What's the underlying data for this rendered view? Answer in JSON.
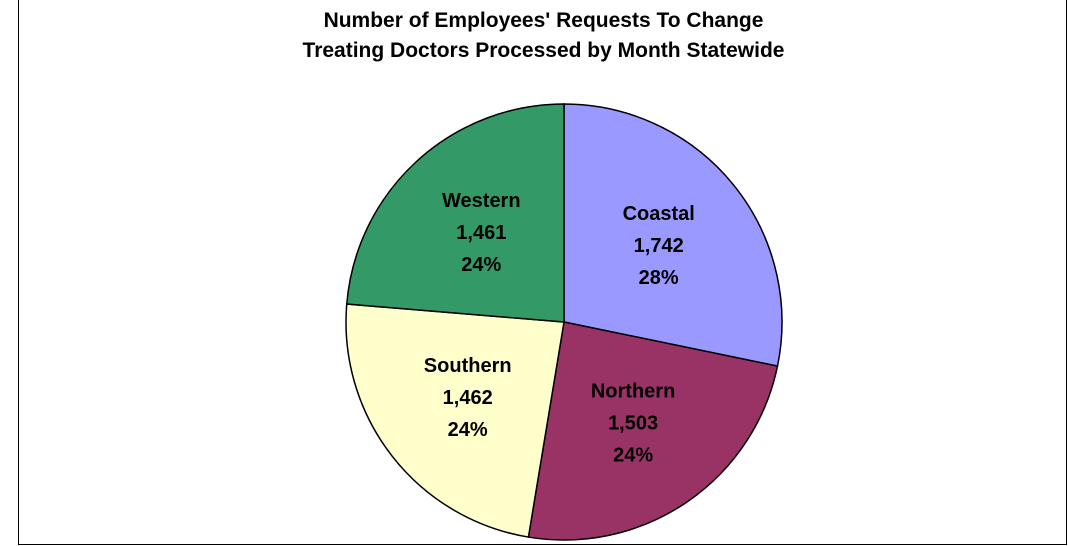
{
  "chart_data": {
    "type": "pie",
    "title_lines": [
      "Number of Employees' Requests To Change",
      "Treating Doctors Processed by Month Statewide"
    ],
    "start_category": "Coastal",
    "direction": "clockwise",
    "slices": [
      {
        "name": "Coastal",
        "value": 1742,
        "value_label": "1,742",
        "percent_label": "28%",
        "color": "#9999FF"
      },
      {
        "name": "Northern",
        "value": 1503,
        "value_label": "1,503",
        "percent_label": "24%",
        "color": "#993366"
      },
      {
        "name": "Southern",
        "value": 1462,
        "value_label": "1,462",
        "percent_label": "24%",
        "color": "#FFFFCC"
      },
      {
        "name": "Western",
        "value": 1461,
        "value_label": "1,461",
        "percent_label": "24%",
        "color": "#339966"
      }
    ],
    "legend": "none"
  }
}
